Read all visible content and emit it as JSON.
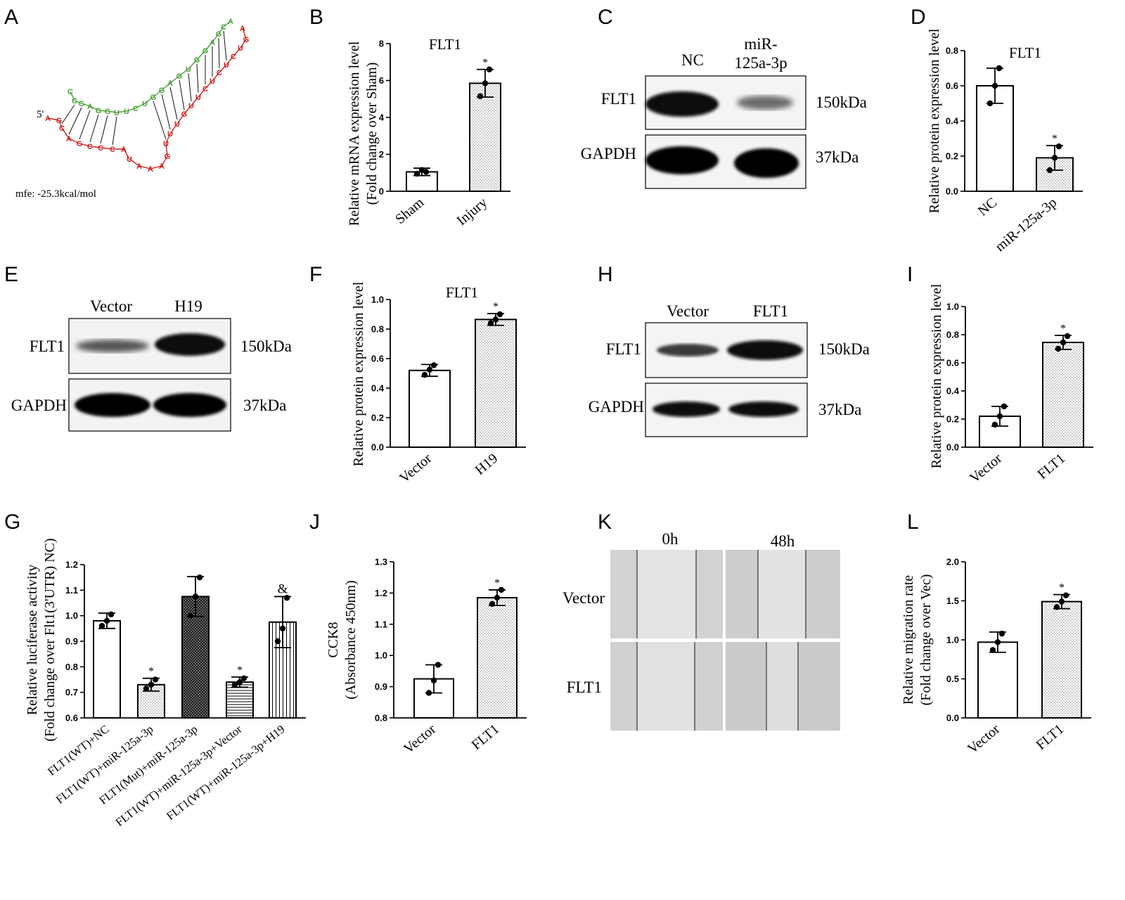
{
  "panels": {
    "A": {
      "label": "A",
      "five_prime": "5'",
      "mfe": "mfe:   -25.3kcal/mol",
      "mirna_strand": [
        "C",
        "C",
        "G",
        "A",
        "G",
        "G",
        "U",
        "U",
        "C",
        "U",
        "G",
        "G",
        "A",
        "G",
        "U",
        "G",
        "G",
        "A",
        "G",
        "C",
        "A"
      ],
      "target_strand": [
        "A",
        "G",
        "C",
        "A",
        "G",
        "C",
        "C",
        "C",
        "A",
        "U",
        "A",
        "A",
        "A",
        "G",
        "U",
        "U",
        "U",
        "G",
        "U",
        "U",
        "C",
        "U",
        "C",
        "U",
        "C",
        "U",
        "G",
        "A"
      ],
      "colors": {
        "mirna": "#4a9e3a",
        "target": "#cc2222"
      }
    },
    "B": {
      "label": "B"
    },
    "C": {
      "label": "C",
      "lanes": [
        "NC",
        "miR-\n125a-3p"
      ],
      "rows": [
        {
          "name": "FLT1",
          "kda": "150kDa"
        },
        {
          "name": "GAPDH",
          "kda": "37kDa"
        }
      ]
    },
    "D": {
      "label": "D"
    },
    "E": {
      "label": "E",
      "lanes": [
        "Vector",
        "H19"
      ],
      "rows": [
        {
          "name": "FLT1",
          "kda": "150kDa"
        },
        {
          "name": "GAPDH",
          "kda": "37kDa"
        }
      ]
    },
    "F": {
      "label": "F"
    },
    "G": {
      "label": "G"
    },
    "H": {
      "label": "H",
      "lanes": [
        "Vector",
        "FLT1"
      ],
      "rows": [
        {
          "name": "FLT1",
          "kda": "150kDa"
        },
        {
          "name": "GAPDH",
          "kda": "37kDa"
        }
      ]
    },
    "I": {
      "label": "I"
    },
    "J": {
      "label": "J"
    },
    "K": {
      "label": "K",
      "columns": [
        "0h",
        "48h"
      ],
      "rows": [
        "Vector",
        "FLT1"
      ]
    },
    "L": {
      "label": "L"
    }
  },
  "chart_data": [
    {
      "id": "B",
      "type": "bar",
      "title": "FLT1",
      "ylabel": [
        "Relative mRNA expression level",
        "(Fold change over Sham)"
      ],
      "ylim": [
        0,
        8
      ],
      "yticks": [
        0,
        2,
        4,
        6,
        8
      ],
      "tick_labels": [
        "0",
        "2",
        "4",
        "6",
        "8"
      ],
      "categories": [
        "Sham",
        "Injury"
      ],
      "values": [
        1.05,
        5.85
      ],
      "errors": [
        0.2,
        0.75
      ],
      "points": [
        [
          0.95,
          1.15,
          1.05
        ],
        [
          5.15,
          5.85,
          6.6
        ]
      ],
      "fills": [
        "white",
        "dots"
      ],
      "sig": [
        "",
        "*"
      ]
    },
    {
      "id": "D",
      "type": "bar",
      "title": "FLT1",
      "ylabel": [
        "Relative protein expression level"
      ],
      "ylim": [
        0,
        0.8
      ],
      "yticks": [
        0,
        0.2,
        0.4,
        0.6,
        0.8
      ],
      "tick_labels": [
        "0.0",
        "0.2",
        "0.4",
        "0.6",
        "0.8"
      ],
      "categories": [
        "NC",
        "miR-125a-3p"
      ],
      "values": [
        0.6,
        0.19
      ],
      "errors": [
        0.1,
        0.07
      ],
      "points": [
        [
          0.5,
          0.6,
          0.7
        ],
        [
          0.12,
          0.19,
          0.255
        ]
      ],
      "fills": [
        "white",
        "dots"
      ],
      "sig": [
        "",
        "*"
      ]
    },
    {
      "id": "F",
      "type": "bar",
      "title": "FLT1",
      "ylabel": [
        "Relative protein expression level"
      ],
      "ylim": [
        0,
        1.0
      ],
      "yticks": [
        0,
        0.2,
        0.4,
        0.6,
        0.8,
        1.0
      ],
      "tick_labels": [
        "0.0",
        "0.2",
        "0.4",
        "0.6",
        "0.8",
        "1.0"
      ],
      "categories": [
        "Vector",
        "H19"
      ],
      "values": [
        0.52,
        0.865
      ],
      "errors": [
        0.04,
        0.04
      ],
      "points": [
        [
          0.49,
          0.525,
          0.555
        ],
        [
          0.84,
          0.865,
          0.9
        ]
      ],
      "fills": [
        "white",
        "dots"
      ],
      "sig": [
        "",
        "*"
      ]
    },
    {
      "id": "I",
      "type": "bar",
      "title": "",
      "ylabel": [
        "Relative protein expression level"
      ],
      "ylim": [
        0,
        1.0
      ],
      "yticks": [
        0,
        0.2,
        0.4,
        0.6,
        0.8,
        1.0
      ],
      "tick_labels": [
        "0.0",
        "0.2",
        "0.4",
        "0.6",
        "0.8",
        "1.0"
      ],
      "categories": [
        "Vector",
        "FLT1"
      ],
      "values": [
        0.22,
        0.745
      ],
      "errors": [
        0.07,
        0.05
      ],
      "points": [
        [
          0.16,
          0.22,
          0.29
        ],
        [
          0.7,
          0.745,
          0.79
        ]
      ],
      "fills": [
        "white",
        "dots"
      ],
      "sig": [
        "",
        "*"
      ]
    },
    {
      "id": "G",
      "type": "bar",
      "title": "",
      "ylabel": [
        "Relative luciferase activity",
        "(Fold change over Flt1(3'UTR) NC)"
      ],
      "ylim": [
        0.6,
        1.2
      ],
      "yticks": [
        0.6,
        0.7,
        0.8,
        0.9,
        1.0,
        1.1,
        1.2
      ],
      "tick_labels": [
        "0.6",
        "0.7",
        "0.8",
        "0.9",
        "1.0",
        "1.1",
        "1.2"
      ],
      "categories": [
        "FLT1(WT)+NC",
        "FLT1(WT)+miR-125a-3p",
        "FLT1(Mut)+miR-125a-3p",
        "FLT1(WT)+miR-125a-3p+Vector",
        "FLT1(WT)+miR-125a-3p+H19"
      ],
      "values": [
        0.98,
        0.73,
        1.075,
        0.74,
        0.975
      ],
      "errors": [
        0.03,
        0.025,
        0.078,
        0.02,
        0.1
      ],
      "points": [
        [
          0.96,
          0.98,
          1.005
        ],
        [
          0.715,
          0.73,
          0.75
        ],
        [
          1.0,
          1.075,
          1.15
        ],
        [
          0.73,
          0.74,
          0.755
        ],
        [
          0.9,
          0.95,
          1.07
        ]
      ],
      "fills": [
        "white",
        "dots",
        "cross",
        "hlines",
        "vlines"
      ],
      "sig": [
        "",
        "*",
        "",
        "*",
        "&"
      ]
    },
    {
      "id": "J",
      "type": "bar",
      "title": "",
      "ylabel": [
        "CCK8",
        "(Absorbance 450nm)"
      ],
      "ylim": [
        0.8,
        1.3
      ],
      "yticks": [
        0.8,
        0.9,
        1.0,
        1.1,
        1.2,
        1.3
      ],
      "tick_labels": [
        "0.8",
        "0.9",
        "1.0",
        "1.1",
        "1.2",
        "1.3"
      ],
      "categories": [
        "Vector",
        "FLT1"
      ],
      "values": [
        0.925,
        1.185
      ],
      "errors": [
        0.045,
        0.025
      ],
      "points": [
        [
          0.88,
          0.92,
          0.97
        ],
        [
          1.165,
          1.185,
          1.21
        ]
      ],
      "fills": [
        "white",
        "dots"
      ],
      "sig": [
        "",
        "*"
      ]
    },
    {
      "id": "L",
      "type": "bar",
      "title": "",
      "ylabel": [
        "Relative migration rate",
        "(Fold change over Vec)"
      ],
      "ylim": [
        0,
        2.0
      ],
      "yticks": [
        0,
        0.5,
        1.0,
        1.5,
        2.0
      ],
      "tick_labels": [
        "0.0",
        "0.5",
        "1.0",
        "1.5",
        "2.0"
      ],
      "categories": [
        "Vector",
        "FLT1"
      ],
      "values": [
        0.97,
        1.49
      ],
      "errors": [
        0.13,
        0.09
      ],
      "points": [
        [
          0.87,
          0.97,
          1.08
        ],
        [
          1.42,
          1.49,
          1.57
        ]
      ],
      "fills": [
        "white",
        "dots"
      ],
      "sig": [
        "",
        "*"
      ]
    }
  ]
}
